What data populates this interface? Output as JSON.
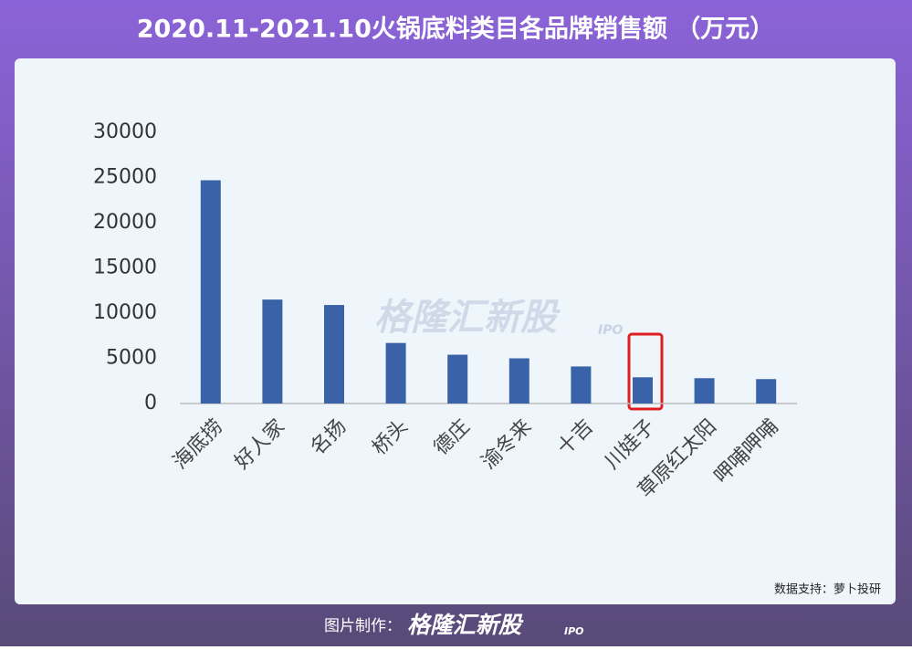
{
  "header": {
    "title": "2020.11-2021.10火锅底料类目各品牌销售额 （万元）"
  },
  "chart_data": {
    "type": "bar",
    "categories": [
      "海底捞",
      "好人家",
      "名扬",
      "桥头",
      "德庄",
      "渝冬来",
      "十吉",
      "川娃子",
      "草原红太阳",
      "呷哺呷哺"
    ],
    "values": [
      24700,
      11500,
      10900,
      6700,
      5400,
      5000,
      4100,
      2900,
      2800,
      2700
    ],
    "color": "#3a62a8",
    "ylim": [
      0,
      30000
    ],
    "yticks": [
      0,
      5000,
      10000,
      15000,
      20000,
      25000,
      30000
    ],
    "grid": false
  },
  "watermark": {
    "brand": "格隆汇新股",
    "tag": "IPO"
  },
  "source": "数据支持：萝卜投研",
  "footer": {
    "label": "图片制作：",
    "brand": "格隆汇新股",
    "tag": "IPO"
  }
}
